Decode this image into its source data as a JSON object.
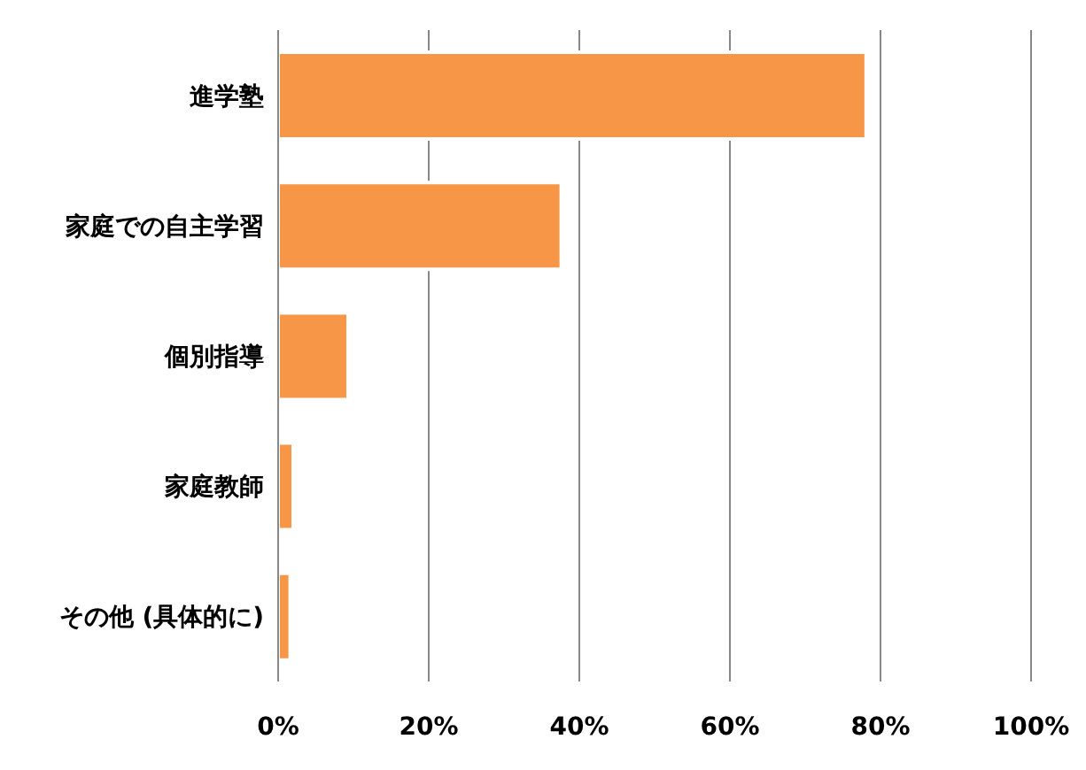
{
  "chart_data": {
    "type": "bar",
    "orientation": "horizontal",
    "categories": [
      "進学塾",
      "家庭での自主学習",
      "個別指導",
      "家庭教師",
      "その他 (具体的に)"
    ],
    "values": [
      78.1,
      37.6,
      9.3,
      2.0,
      1.6
    ],
    "color": "#f79646",
    "xlim": [
      0,
      100
    ],
    "xticks": [
      {
        "value": 0,
        "label": "0%"
      },
      {
        "value": 20,
        "label": "20%"
      },
      {
        "value": 40,
        "label": "40%"
      },
      {
        "value": 60,
        "label": "60%"
      },
      {
        "value": 80,
        "label": "80%"
      },
      {
        "value": 100,
        "label": "100%"
      }
    ],
    "grid": "x"
  }
}
